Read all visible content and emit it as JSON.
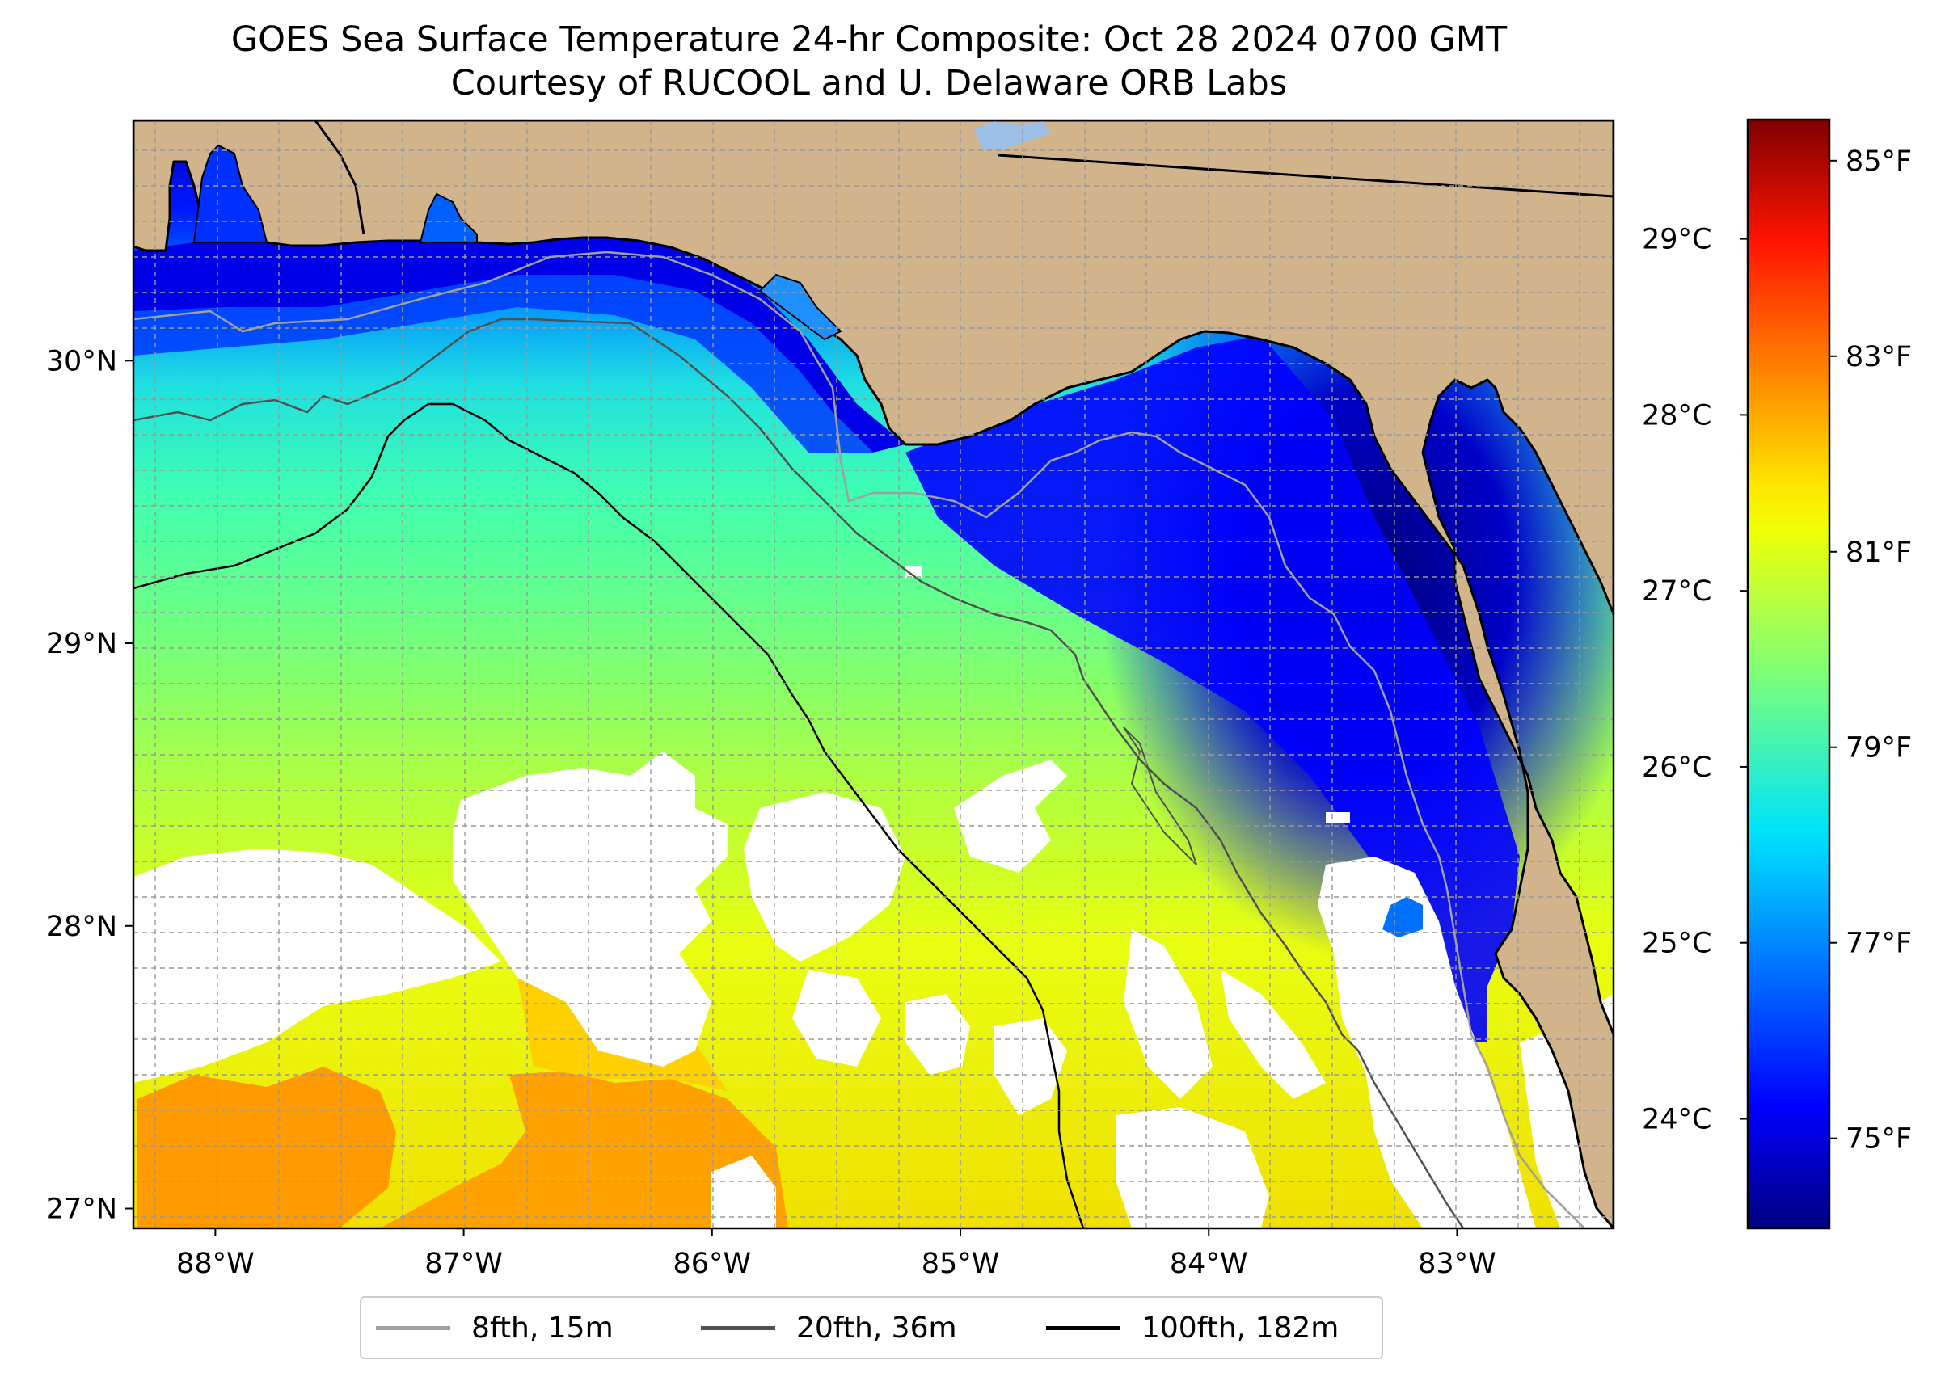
{
  "title": "GOES Sea Surface Temperature 24-hr Composite: Oct 28 2024 0700 GMT",
  "subtitle": "Courtesy of RUCOOL and U. Delaware ORB Labs",
  "map": {
    "lon_range": [
      -88.33,
      -82.37
    ],
    "lat_range": [
      26.93,
      30.85
    ],
    "land_color": "#d2b48c",
    "no_data_color": "#ffffff",
    "lon_ticks": [
      {
        "value": -88,
        "label": "88°W"
      },
      {
        "value": -87,
        "label": "87°W"
      },
      {
        "value": -86,
        "label": "86°W"
      },
      {
        "value": -85,
        "label": "85°W"
      },
      {
        "value": -84,
        "label": "84°W"
      },
      {
        "value": -83,
        "label": "83°W"
      }
    ],
    "lat_ticks": [
      {
        "value": 27,
        "label": "27°N"
      },
      {
        "value": 28,
        "label": "28°N"
      },
      {
        "value": 29,
        "label": "29°N"
      },
      {
        "value": 30,
        "label": "30°N"
      }
    ]
  },
  "colorbar": {
    "colormap": "jet",
    "celsius_ticks": [
      {
        "value": 24,
        "label": "24°C"
      },
      {
        "value": 25,
        "label": "25°C"
      },
      {
        "value": 26,
        "label": "26°C"
      },
      {
        "value": 27,
        "label": "27°C"
      },
      {
        "value": 28,
        "label": "28°C"
      },
      {
        "value": 29,
        "label": "29°C"
      }
    ],
    "fahrenheit_ticks": [
      {
        "value": 75,
        "label": "75°F"
      },
      {
        "value": 77,
        "label": "77°F"
      },
      {
        "value": 79,
        "label": "79°F"
      },
      {
        "value": 81,
        "label": "81°F"
      },
      {
        "value": 83,
        "label": "83°F"
      },
      {
        "value": 85,
        "label": "85°F"
      }
    ]
  },
  "legend": [
    {
      "label": "8fth, 15m",
      "color": "#a0a0a0"
    },
    {
      "label": "20fth, 36m",
      "color": "#505050"
    },
    {
      "label": "100fth, 182m",
      "color": "#000000"
    }
  ]
}
